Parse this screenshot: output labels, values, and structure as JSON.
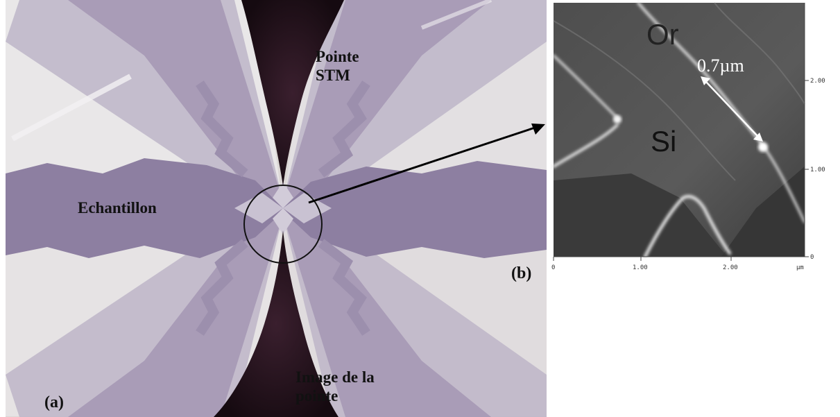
{
  "panel_a": {
    "label_tip_line1": "Pointe",
    "label_tip_line2": "STM",
    "label_sample": "Echantillon",
    "label_tip_image_line1": "Image de la",
    "label_tip_image_line2": "pointe",
    "label_panel": "(a)"
  },
  "panel_b": {
    "label_panel": "(b)",
    "label_gold": "Or",
    "label_silicon": "Si",
    "label_gap": "0.7µm",
    "x_ticks": [
      "0",
      "1.00",
      "2.00",
      "µm"
    ],
    "y_ticks": [
      "2.00",
      "1.00",
      "0"
    ]
  },
  "colors": {
    "background": "#ffffff",
    "electrode_purple": "#8e80a0",
    "electrode_light": "#b8b0c4",
    "substrate": "#dedad8",
    "tip_dark": "#1e0f17",
    "afm_background": "#555555"
  }
}
